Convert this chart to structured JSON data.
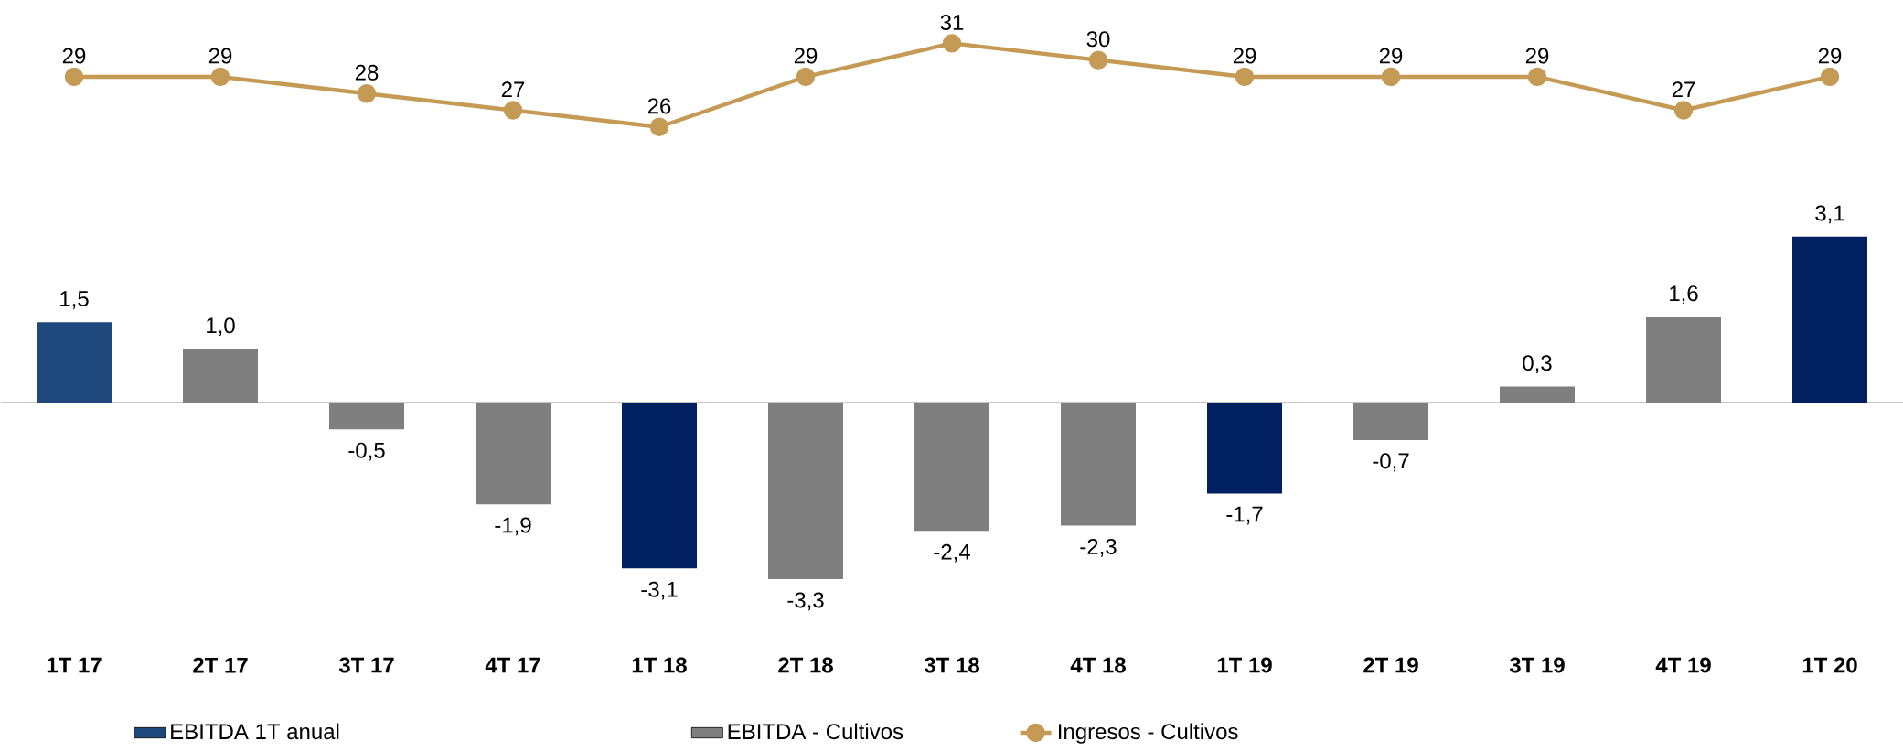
{
  "chart_data": [
    {
      "type": "line",
      "categories": [
        null,
        null,
        null,
        null,
        null,
        null,
        null,
        null,
        null,
        null,
        null,
        null,
        null
      ],
      "series": [
        {
          "name": "Ingresos - Cultivos",
          "color": "#c49a55",
          "values": [
            29,
            29,
            28,
            27,
            26,
            29,
            31,
            30,
            29,
            29,
            29,
            27,
            29
          ],
          "value_labels": [
            "29",
            "29",
            "28",
            "27",
            "26",
            "29",
            "31",
            "30",
            "29",
            "29",
            "29",
            "27",
            "29"
          ]
        }
      ],
      "marker": "circle",
      "line_style": "solid",
      "tick_labels": false,
      "legend": "bottom"
    },
    {
      "type": "bar",
      "categories": [
        "1T 17",
        "2T 17",
        "3T 17",
        "4T 17",
        "1T 18",
        "2T 18",
        "3T 18",
        "4T 18",
        "1T 19",
        "2T 19",
        "3T 19",
        "4T 19",
        "1T 20"
      ],
      "series": [
        {
          "name": "EBITDA 1T anual",
          "color": "#1f497d",
          "values": [
            1.5,
            null,
            null,
            null,
            -3.1,
            null,
            null,
            null,
            -1.7,
            null,
            null,
            null,
            3.1
          ],
          "colors": [
            "#1f497d",
            null,
            null,
            null,
            "#002060",
            null,
            null,
            null,
            "#002060",
            null,
            null,
            null,
            "#002060"
          ],
          "value_labels": [
            "1,5",
            null,
            null,
            null,
            "-3,1",
            null,
            null,
            null,
            "-1,7",
            null,
            null,
            null,
            "3,1"
          ]
        },
        {
          "name": "EBITDA - Cultivos",
          "color": "#7f7f7f",
          "values": [
            null,
            1.0,
            -0.5,
            -1.9,
            null,
            -3.3,
            -2.4,
            -2.3,
            null,
            -0.7,
            0.3,
            1.6,
            null
          ],
          "value_labels": [
            null,
            "1,0",
            "-0,5",
            "-1,9",
            null,
            "-3,3",
            "-2,4",
            "-2,3",
            null,
            "-0,7",
            "0,3",
            "1,6",
            null
          ]
        }
      ],
      "tick_labels": "x",
      "legend": "bottom"
    }
  ]
}
